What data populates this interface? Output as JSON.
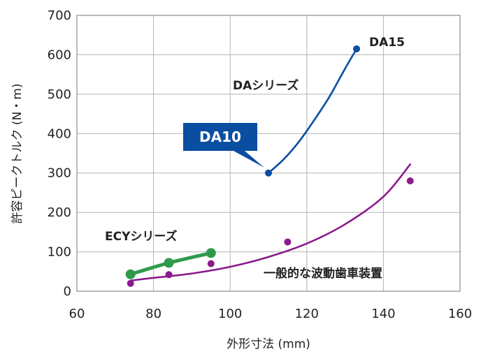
{
  "chart_data": {
    "type": "line",
    "xlabel": "外形寸法 (mm)",
    "ylabel": "許容ピークトルク (N・m)",
    "xlim": [
      60,
      160
    ],
    "ylim": [
      0,
      700
    ],
    "x_ticks": [
      "60",
      "80",
      "100",
      "120",
      "140",
      "160"
    ],
    "y_ticks": [
      "0",
      "100",
      "200",
      "300",
      "400",
      "500",
      "600",
      "700"
    ],
    "grid": true,
    "series": [
      {
        "name": "DAシリーズ",
        "color": "#0a4ea2",
        "points": [
          [
            110,
            300
          ],
          [
            133,
            615
          ]
        ],
        "curve": [
          [
            110,
            300
          ],
          [
            114,
            335
          ],
          [
            118,
            380
          ],
          [
            122,
            435
          ],
          [
            126,
            495
          ],
          [
            130,
            565
          ],
          [
            133,
            615
          ]
        ]
      },
      {
        "name": "ECYシリーズ",
        "color": "#2f9a4b",
        "points": [
          [
            74,
            43
          ],
          [
            84,
            72
          ],
          [
            95,
            97
          ]
        ]
      },
      {
        "name": "一般的な波動歯車装置",
        "color": "#8b1a8c",
        "points": [
          [
            74,
            20
          ],
          [
            84,
            42
          ],
          [
            95,
            70
          ],
          [
            115,
            125
          ],
          [
            147,
            280
          ]
        ],
        "curve": [
          [
            74,
            27
          ],
          [
            80,
            34
          ],
          [
            90,
            45
          ],
          [
            100,
            62
          ],
          [
            110,
            87
          ],
          [
            120,
            121
          ],
          [
            130,
            170
          ],
          [
            140,
            240
          ],
          [
            147,
            322
          ]
        ]
      }
    ],
    "annotations": {
      "da_series": "DAシリーズ",
      "da15": "DA15",
      "da10": "DA10",
      "ecy_series": "ECYシリーズ",
      "general": "一般的な波動歯車装置"
    }
  }
}
